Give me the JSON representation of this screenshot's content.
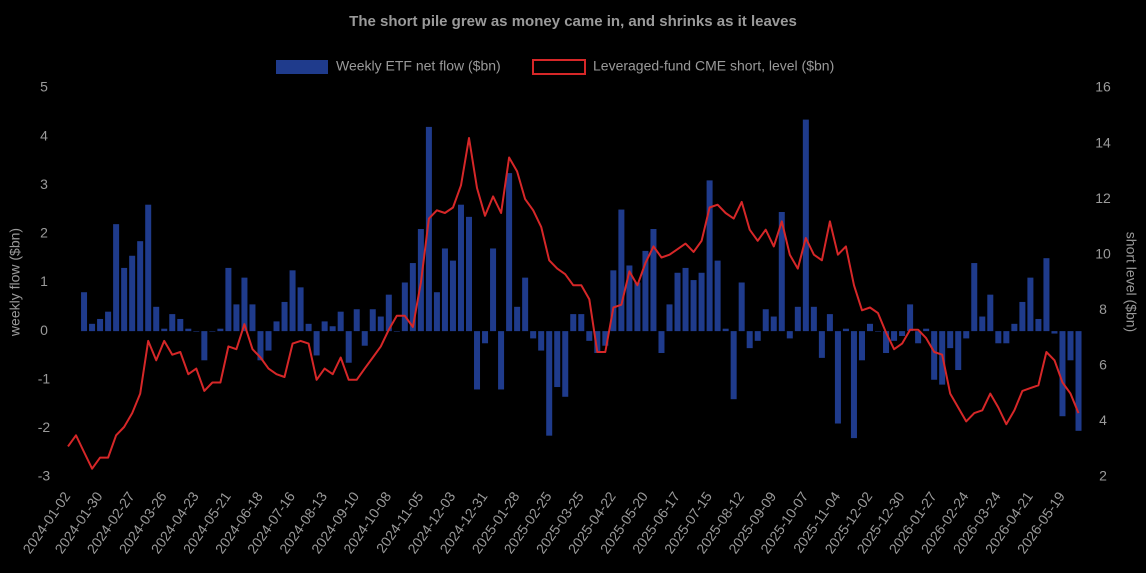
{
  "chart_data": {
    "type": "bar-line",
    "title": "The short pile grew as money came in, and shrinks as it leaves",
    "y_label": "weekly flow ($bn)",
    "y2_label": "short level ($bn)",
    "legend": "top",
    "categories": [
      "2024-01-02",
      null,
      null,
      null,
      "2024-01-30",
      null,
      null,
      null,
      "2024-02-27",
      null,
      null,
      null,
      "2024-03-26",
      null,
      null,
      null,
      "2024-04-23",
      null,
      null,
      null,
      "2024-05-21",
      null,
      null,
      null,
      "2024-06-18",
      null,
      null,
      null,
      "2024-07-16",
      null,
      null,
      null,
      "2024-08-13",
      null,
      null,
      null,
      "2024-09-10",
      null,
      null,
      null,
      "2024-10-08",
      null,
      null,
      null,
      "2024-11-05",
      null,
      null,
      null,
      "2024-12-03",
      null,
      null,
      null,
      "2024-12-31",
      null,
      null,
      null,
      "2025-01-28",
      null,
      null,
      null,
      "2025-02-25",
      null,
      null,
      null,
      "2025-03-25",
      null,
      null,
      null,
      "2025-04-22",
      null,
      null,
      null,
      "2025-05-20",
      null,
      null,
      null,
      "2025-06-17",
      null,
      null,
      null,
      "2025-07-15",
      null,
      null,
      null,
      "2025-08-12",
      null,
      null,
      null,
      "2025-09-09",
      null,
      null,
      null,
      "2025-10-07",
      null,
      null,
      null,
      "2025-11-04",
      null,
      null,
      null,
      "2025-12-02",
      null,
      null,
      null,
      "2025-12-30",
      null,
      null,
      null,
      "2026-01-27",
      null,
      null,
      null,
      "2026-02-24",
      null,
      null,
      null,
      "2026-03-24",
      null,
      null,
      null,
      "2026-04-21",
      null,
      null,
      null,
      "2026-05-19",
      null,
      null
    ],
    "series": [
      {
        "name": "Weekly ETF net flow ($bn)",
        "type": "bar",
        "color": "#1f3b8c",
        "values": [
          null,
          null,
          0.8,
          0.15,
          0.25,
          0.4,
          2.2,
          1.3,
          1.55,
          1.85,
          2.6,
          0.5,
          0.05,
          0.35,
          0.25,
          0.05,
          0,
          -0.6,
          0,
          0.05,
          1.3,
          0.55,
          1.1,
          0.55,
          -0.6,
          -0.4,
          0.2,
          0.6,
          1.25,
          0.9,
          0.15,
          -0.5,
          0.2,
          0.1,
          0.4,
          -0.65,
          0.45,
          -0.3,
          0.45,
          0.3,
          0.75,
          0,
          1.0,
          1.4,
          2.1,
          4.2,
          0.8,
          1.7,
          1.45,
          2.6,
          2.35,
          -1.2,
          -0.25,
          1.7,
          -1.2,
          3.25,
          0.5,
          1.1,
          -0.15,
          -0.4,
          -2.15,
          -1.15,
          -1.35,
          0.35,
          0.35,
          -0.2,
          -0.45,
          -0.3,
          1.25,
          2.5,
          1.35,
          1.0,
          1.65,
          2.1,
          -0.45,
          0.55,
          1.2,
          1.3,
          1.05,
          1.2,
          3.1,
          1.45,
          0.05,
          -1.4,
          1.0,
          -0.35,
          -0.2,
          0.45,
          0.3,
          2.45,
          -0.15,
          0.5,
          4.35,
          0.5,
          -0.55,
          0.35,
          -1.9,
          0.05,
          -2.2,
          -0.6,
          0.15,
          0,
          -0.45,
          -0.2,
          -0.1,
          0.55,
          -0.25,
          0.05,
          -1.0,
          -1.1,
          -0.35,
          -0.8,
          -0.15,
          1.4,
          0.3,
          0.75,
          -0.25,
          -0.25,
          0.15,
          0.6,
          1.1,
          0.25,
          1.5,
          -0.05,
          -1.75,
          -0.6,
          -2.05
        ]
      },
      {
        "name": "Leveraged-fund CME short, level ($bn)",
        "type": "line",
        "axis": "y2",
        "color": "#d62728",
        "values": [
          3.1,
          3.5,
          2.9,
          2.3,
          2.7,
          2.7,
          3.5,
          3.8,
          4.3,
          5.0,
          6.9,
          6.2,
          6.9,
          6.4,
          6.5,
          5.7,
          5.9,
          5.1,
          5.4,
          5.4,
          6.7,
          6.6,
          7.5,
          6.6,
          6.3,
          5.9,
          5.7,
          5.6,
          6.8,
          6.9,
          6.8,
          5.5,
          5.9,
          5.7,
          6.3,
          5.5,
          5.5,
          5.9,
          6.3,
          6.7,
          7.3,
          7.8,
          7.8,
          7.4,
          9.0,
          11.3,
          11.6,
          11.5,
          11.7,
          12.5,
          14.2,
          12.4,
          11.4,
          12.1,
          11.5,
          13.5,
          13.0,
          12.0,
          11.6,
          11.0,
          9.8,
          9.5,
          9.3,
          8.9,
          8.9,
          8.4,
          6.5,
          6.5,
          8.1,
          8.2,
          9.4,
          8.9,
          9.7,
          10.3,
          9.9,
          10.0,
          10.2,
          10.4,
          10.1,
          10.5,
          11.7,
          11.8,
          11.5,
          11.3,
          11.9,
          10.9,
          10.5,
          10.9,
          10.3,
          11.2,
          10.0,
          9.5,
          10.6,
          10.0,
          9.8,
          11.2,
          10.0,
          10.3,
          8.9,
          8.0,
          8.1,
          7.9,
          7.2,
          6.6,
          6.8,
          7.3,
          7.3,
          7.0,
          6.5,
          6.4,
          5.0,
          4.5,
          4.0,
          4.3,
          4.4,
          5.0,
          4.5,
          3.9,
          4.4,
          5.1,
          5.2,
          5.3,
          6.5,
          6.2,
          5.4,
          5.0,
          4.3
        ]
      }
    ],
    "ylim": [
      -3,
      5
    ],
    "yticks": [
      -3,
      -2,
      -1,
      0,
      1,
      2,
      3,
      4,
      5
    ],
    "y2lim": [
      2,
      16
    ],
    "y2ticks": [
      2,
      4,
      6,
      8,
      10,
      12,
      14,
      16
    ]
  }
}
